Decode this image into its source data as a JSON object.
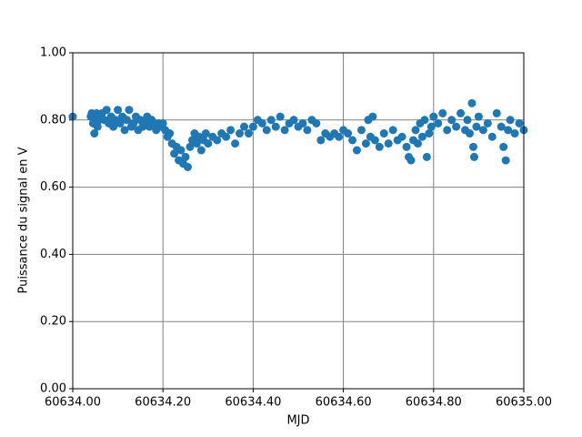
{
  "chart_data": {
    "type": "scatter",
    "x_label": "MJD",
    "y_label": "Puissance du signal en V",
    "color": "#1f77b4",
    "grid": true,
    "xlim": [
      60634.0,
      60635.0
    ],
    "xticks": [
      {
        "value": 60634.0,
        "label": "60634.00"
      },
      {
        "value": 60634.2,
        "label": "60634.20"
      },
      {
        "value": 60634.4,
        "label": "60634.40"
      },
      {
        "value": 60634.6,
        "label": "60634.60"
      },
      {
        "value": 60634.8,
        "label": "60634.80"
      },
      {
        "value": 60635.0,
        "label": "60635.00"
      }
    ],
    "ylim": [
      0,
      1
    ],
    "yticks": [
      {
        "value": 0,
        "label": "0.00"
      },
      {
        "value": 0.2,
        "label": "0.20"
      },
      {
        "value": 0.4,
        "label": "0.40"
      },
      {
        "value": 0.6,
        "label": "0.60"
      },
      {
        "value": 0.8,
        "label": "0.80"
      },
      {
        "value": 1,
        "label": "1.00"
      }
    ],
    "x": [
      60634.0,
      60634.04,
      60634.042,
      60634.045,
      60634.048,
      60634.05,
      60634.053,
      60634.055,
      60634.058,
      60634.06,
      60634.065,
      60634.07,
      60634.075,
      60634.08,
      60634.085,
      60634.09,
      60634.095,
      60634.1,
      60634.105,
      60634.11,
      60634.115,
      60634.12,
      60634.125,
      60634.13,
      60634.135,
      60634.14,
      60634.145,
      60634.15,
      60634.155,
      60634.16,
      60634.165,
      60634.17,
      60634.175,
      60634.18,
      60634.185,
      60634.19,
      60634.195,
      60634.2,
      60634.205,
      60634.21,
      60634.215,
      60634.22,
      60634.225,
      60634.23,
      60634.235,
      60634.24,
      60634.245,
      60634.25,
      60634.255,
      60634.26,
      60634.265,
      60634.27,
      60634.275,
      60634.28,
      60634.285,
      60634.29,
      60634.295,
      60634.3,
      60634.31,
      60634.32,
      60634.33,
      60634.34,
      60634.35,
      60634.36,
      60634.37,
      60634.38,
      60634.39,
      60634.4,
      60634.41,
      60634.42,
      60634.43,
      60634.44,
      60634.45,
      60634.46,
      60634.47,
      60634.48,
      60634.49,
      60634.5,
      60634.51,
      60634.52,
      60634.53,
      60634.54,
      60634.55,
      60634.56,
      60634.57,
      60634.58,
      60634.59,
      60634.6,
      60634.61,
      60634.62,
      60634.63,
      60634.64,
      60634.65,
      60634.655,
      60634.66,
      60634.665,
      60634.67,
      60634.68,
      60634.69,
      60634.7,
      60634.71,
      60634.72,
      60634.73,
      60634.74,
      60634.745,
      60634.75,
      60634.755,
      60634.76,
      60634.765,
      60634.77,
      60634.775,
      60634.78,
      60634.785,
      60634.79,
      60634.795,
      60634.8,
      60634.81,
      60634.82,
      60634.83,
      60634.84,
      60634.85,
      60634.86,
      60634.87,
      60634.875,
      60634.88,
      60634.885,
      60634.888,
      60634.89,
      60634.895,
      60634.9,
      60634.91,
      60634.92,
      60634.93,
      60634.94,
      60634.95,
      60634.955,
      60634.96,
      60634.965,
      60634.97,
      60634.98,
      60634.99,
      60635.0
    ],
    "values": [
      0.81,
      0.81,
      0.82,
      0.79,
      0.76,
      0.8,
      0.82,
      0.78,
      0.8,
      0.81,
      0.82,
      0.8,
      0.83,
      0.79,
      0.81,
      0.78,
      0.8,
      0.83,
      0.79,
      0.81,
      0.77,
      0.8,
      0.83,
      0.78,
      0.79,
      0.81,
      0.77,
      0.8,
      0.78,
      0.79,
      0.81,
      0.78,
      0.8,
      0.79,
      0.77,
      0.79,
      0.78,
      0.79,
      0.77,
      0.75,
      0.76,
      0.73,
      0.7,
      0.72,
      0.68,
      0.71,
      0.67,
      0.69,
      0.66,
      0.72,
      0.74,
      0.76,
      0.73,
      0.75,
      0.71,
      0.74,
      0.76,
      0.73,
      0.75,
      0.74,
      0.76,
      0.75,
      0.77,
      0.73,
      0.76,
      0.78,
      0.76,
      0.78,
      0.8,
      0.79,
      0.77,
      0.8,
      0.78,
      0.81,
      0.77,
      0.79,
      0.8,
      0.78,
      0.79,
      0.77,
      0.8,
      0.79,
      0.74,
      0.76,
      0.75,
      0.76,
      0.75,
      0.77,
      0.76,
      0.74,
      0.71,
      0.77,
      0.73,
      0.8,
      0.75,
      0.81,
      0.74,
      0.72,
      0.76,
      0.73,
      0.77,
      0.74,
      0.75,
      0.72,
      0.69,
      0.68,
      0.74,
      0.77,
      0.73,
      0.79,
      0.75,
      0.8,
      0.69,
      0.76,
      0.78,
      0.81,
      0.79,
      0.82,
      0.77,
      0.8,
      0.78,
      0.82,
      0.77,
      0.8,
      0.76,
      0.85,
      0.72,
      0.69,
      0.78,
      0.81,
      0.77,
      0.79,
      0.75,
      0.82,
      0.78,
      0.72,
      0.68,
      0.77,
      0.8,
      0.76,
      0.79,
      0.77
    ]
  }
}
